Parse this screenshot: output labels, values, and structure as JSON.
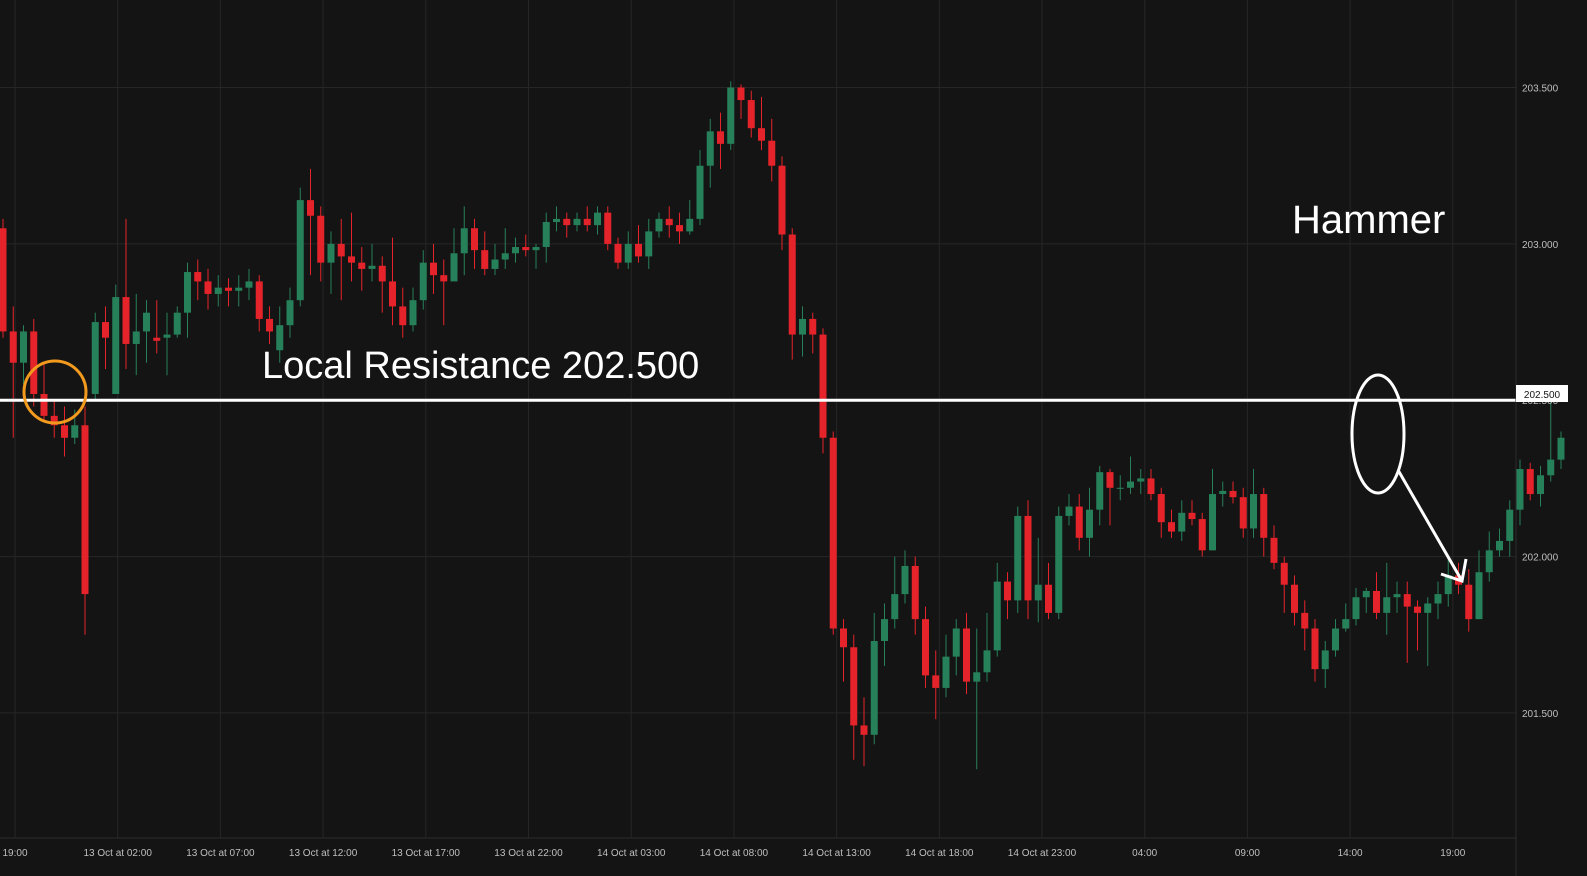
{
  "chart_data": {
    "type": "candlestick",
    "title": "",
    "xlabel": "",
    "ylabel": "",
    "ylim": [
      201.1,
      203.78
    ],
    "grid": true,
    "y_ticks": [
      "201.500",
      "202.000",
      "202.500",
      "203.000",
      "203.500"
    ],
    "x_ticks": [
      "19:00",
      "13 Oct at 02:00",
      "13 Oct at 07:00",
      "13 Oct at 12:00",
      "13 Oct at 17:00",
      "13 Oct at 22:00",
      "14 Oct at 03:00",
      "14 Oct at 08:00",
      "14 Oct at 13:00",
      "14 Oct at 18:00",
      "14 Oct at 23:00",
      "04:00",
      "09:00",
      "14:00",
      "19:00"
    ],
    "resistance": {
      "level": 202.5,
      "label": "202.500",
      "annotation": "Local Resistance 202.500"
    },
    "pattern_label": "Hammer",
    "colors": {
      "up": "#26805a",
      "down": "#e5232a",
      "background": "#141414",
      "grid": "#262626",
      "line": "#ffffff",
      "circle_left": "#f29a1e",
      "circle_right": "#ffffff"
    },
    "candles": [
      [
        203.05,
        202.72,
        203.08,
        202.7
      ],
      [
        202.72,
        202.62,
        202.8,
        202.38
      ],
      [
        202.62,
        202.72,
        202.74,
        202.55
      ],
      [
        202.72,
        202.52,
        202.76,
        202.48
      ],
      [
        202.52,
        202.45,
        202.62,
        202.43
      ],
      [
        202.45,
        202.42,
        202.5,
        202.38
      ],
      [
        202.42,
        202.38,
        202.48,
        202.32
      ],
      [
        202.38,
        202.42,
        202.47,
        202.36
      ],
      [
        202.42,
        201.88,
        202.48,
        201.75
      ],
      [
        202.52,
        202.75,
        202.78,
        202.5
      ],
      [
        202.75,
        202.7,
        202.8,
        202.6
      ],
      [
        202.52,
        202.83,
        202.87,
        202.52
      ],
      [
        202.83,
        202.68,
        203.08,
        202.6
      ],
      [
        202.68,
        202.72,
        202.84,
        202.58
      ],
      [
        202.72,
        202.78,
        202.82,
        202.62
      ],
      [
        202.7,
        202.69,
        202.82,
        202.65
      ],
      [
        202.7,
        202.71,
        202.78,
        202.58
      ],
      [
        202.71,
        202.78,
        202.8,
        202.7
      ],
      [
        202.78,
        202.91,
        202.94,
        202.7
      ],
      [
        202.91,
        202.88,
        202.95,
        202.82
      ],
      [
        202.88,
        202.84,
        202.92,
        202.79
      ],
      [
        202.84,
        202.86,
        202.9,
        202.8
      ],
      [
        202.86,
        202.85,
        202.89,
        202.8
      ],
      [
        202.85,
        202.86,
        202.9,
        202.8
      ],
      [
        202.86,
        202.88,
        202.92,
        202.82
      ],
      [
        202.88,
        202.76,
        202.9,
        202.72
      ],
      [
        202.76,
        202.72,
        202.8,
        202.68
      ],
      [
        202.66,
        202.74,
        202.8,
        202.62
      ],
      [
        202.74,
        202.82,
        202.86,
        202.7
      ],
      [
        202.82,
        203.14,
        203.18,
        202.8
      ],
      [
        203.14,
        203.09,
        203.24,
        202.9
      ],
      [
        203.09,
        202.94,
        203.12,
        202.88
      ],
      [
        202.94,
        203.0,
        203.04,
        202.84
      ],
      [
        203.0,
        202.96,
        203.08,
        202.82
      ],
      [
        202.96,
        202.94,
        203.1,
        202.88
      ],
      [
        202.94,
        202.92,
        202.99,
        202.85
      ],
      [
        202.92,
        202.93,
        203.0,
        202.88
      ],
      [
        202.93,
        202.88,
        202.96,
        202.78
      ],
      [
        202.88,
        202.8,
        203.02,
        202.74
      ],
      [
        202.8,
        202.74,
        202.86,
        202.7
      ],
      [
        202.74,
        202.82,
        202.86,
        202.72
      ],
      [
        202.82,
        202.94,
        202.98,
        202.79
      ],
      [
        202.94,
        202.9,
        203.0,
        202.84
      ],
      [
        202.9,
        202.88,
        202.95,
        202.74
      ],
      [
        202.88,
        202.97,
        203.05,
        202.9
      ],
      [
        202.97,
        203.05,
        203.12,
        202.9
      ],
      [
        203.05,
        202.98,
        203.08,
        202.92
      ],
      [
        202.98,
        202.92,
        203.04,
        202.9
      ],
      [
        202.92,
        202.95,
        203.0,
        202.9
      ],
      [
        202.95,
        202.97,
        203.05,
        202.92
      ],
      [
        202.97,
        202.99,
        203.02,
        202.94
      ],
      [
        202.99,
        202.98,
        203.03,
        202.96
      ],
      [
        202.98,
        202.99,
        203.0,
        202.92
      ],
      [
        202.99,
        203.07,
        203.1,
        202.94
      ],
      [
        203.07,
        203.08,
        203.12,
        203.04
      ],
      [
        203.08,
        203.06,
        203.1,
        203.02
      ],
      [
        203.06,
        203.08,
        203.1,
        203.04
      ],
      [
        203.08,
        203.06,
        203.12,
        203.04
      ],
      [
        203.06,
        203.1,
        203.12,
        203.03
      ],
      [
        203.1,
        203.0,
        203.12,
        202.98
      ],
      [
        203.0,
        202.94,
        203.02,
        202.92
      ],
      [
        202.94,
        203.0,
        203.04,
        202.92
      ],
      [
        203.0,
        202.96,
        203.06,
        202.94
      ],
      [
        202.96,
        203.04,
        203.08,
        202.92
      ],
      [
        203.04,
        203.08,
        203.1,
        203.02
      ],
      [
        203.08,
        203.06,
        203.12,
        203.02
      ],
      [
        203.06,
        203.04,
        203.1,
        203.0
      ],
      [
        203.04,
        203.08,
        203.14,
        203.03
      ],
      [
        203.08,
        203.25,
        203.3,
        203.06
      ],
      [
        203.25,
        203.36,
        203.4,
        203.18
      ],
      [
        203.36,
        203.32,
        203.42,
        203.24
      ],
      [
        203.32,
        203.5,
        203.52,
        203.3
      ],
      [
        203.5,
        203.46,
        203.51,
        203.4
      ],
      [
        203.46,
        203.37,
        203.49,
        203.34
      ],
      [
        203.37,
        203.33,
        203.47,
        203.3
      ],
      [
        203.33,
        203.25,
        203.4,
        203.2
      ],
      [
        203.25,
        203.03,
        203.28,
        202.98
      ],
      [
        203.03,
        202.71,
        203.05,
        202.63
      ],
      [
        202.71,
        202.76,
        202.8,
        202.64
      ],
      [
        202.76,
        202.71,
        202.78,
        202.65
      ],
      [
        202.71,
        202.38,
        202.73,
        202.33
      ],
      [
        202.38,
        201.77,
        202.4,
        201.75
      ],
      [
        201.77,
        201.71,
        201.8,
        201.6
      ],
      [
        201.71,
        201.46,
        201.75,
        201.35
      ],
      [
        201.46,
        201.43,
        201.55,
        201.33
      ],
      [
        201.43,
        201.73,
        201.82,
        201.4
      ],
      [
        201.73,
        201.8,
        201.85,
        201.65
      ],
      [
        201.8,
        201.88,
        202.0,
        201.77
      ],
      [
        201.88,
        201.97,
        202.02,
        201.85
      ],
      [
        201.97,
        201.8,
        202.0,
        201.75
      ],
      [
        201.8,
        201.62,
        201.84,
        201.58
      ],
      [
        201.62,
        201.58,
        201.7,
        201.48
      ],
      [
        201.58,
        201.68,
        201.75,
        201.55
      ],
      [
        201.68,
        201.77,
        201.8,
        201.62
      ],
      [
        201.77,
        201.6,
        201.82,
        201.56
      ],
      [
        201.6,
        201.63,
        201.77,
        201.32
      ],
      [
        201.63,
        201.7,
        201.82,
        201.6
      ],
      [
        201.7,
        201.92,
        201.98,
        201.68
      ],
      [
        201.92,
        201.86,
        201.95,
        201.8
      ],
      [
        201.86,
        202.13,
        202.16,
        201.82
      ],
      [
        202.13,
        201.86,
        202.18,
        201.8
      ],
      [
        201.86,
        201.91,
        202.06,
        201.79
      ],
      [
        201.91,
        201.82,
        201.98,
        201.8
      ],
      [
        201.82,
        202.13,
        202.16,
        201.8
      ],
      [
        202.13,
        202.16,
        202.2,
        202.1
      ],
      [
        202.16,
        202.06,
        202.2,
        202.02
      ],
      [
        202.06,
        202.15,
        202.22,
        202.0
      ],
      [
        202.15,
        202.27,
        202.29,
        202.1
      ],
      [
        202.27,
        202.22,
        202.28,
        202.1
      ],
      [
        202.22,
        202.22,
        202.26,
        202.18
      ],
      [
        202.22,
        202.24,
        202.32,
        202.2
      ],
      [
        202.24,
        202.25,
        202.28,
        202.2
      ],
      [
        202.25,
        202.2,
        202.28,
        202.18
      ],
      [
        202.2,
        202.11,
        202.22,
        202.06
      ],
      [
        202.11,
        202.08,
        202.15,
        202.06
      ],
      [
        202.08,
        202.14,
        202.18,
        202.05
      ],
      [
        202.14,
        202.12,
        202.18,
        202.1
      ],
      [
        202.12,
        202.02,
        202.14,
        202.0
      ],
      [
        202.02,
        202.2,
        202.28,
        202.02
      ],
      [
        202.2,
        202.21,
        202.24,
        202.16
      ],
      [
        202.21,
        202.19,
        202.24,
        202.17
      ],
      [
        202.19,
        202.09,
        202.22,
        202.06
      ],
      [
        202.09,
        202.2,
        202.28,
        202.06
      ],
      [
        202.2,
        202.06,
        202.22,
        202.0
      ],
      [
        202.06,
        201.98,
        202.1,
        201.96
      ],
      [
        201.98,
        201.91,
        202.0,
        201.82
      ],
      [
        201.91,
        201.82,
        201.94,
        201.78
      ],
      [
        201.82,
        201.77,
        201.86,
        201.7
      ],
      [
        201.77,
        201.64,
        201.8,
        201.6
      ],
      [
        201.64,
        201.7,
        201.73,
        201.58
      ],
      [
        201.7,
        201.77,
        201.8,
        201.68
      ],
      [
        201.77,
        201.8,
        201.85,
        201.76
      ],
      [
        201.8,
        201.87,
        201.9,
        201.78
      ],
      [
        201.87,
        201.89,
        201.9,
        201.82
      ],
      [
        201.89,
        201.82,
        201.95,
        201.8
      ],
      [
        201.82,
        201.87,
        201.98,
        201.75
      ],
      [
        201.87,
        201.88,
        201.92,
        201.82
      ],
      [
        201.88,
        201.84,
        201.92,
        201.66
      ],
      [
        201.84,
        201.82,
        201.86,
        201.7
      ],
      [
        201.82,
        201.85,
        201.87,
        201.65
      ],
      [
        201.85,
        201.88,
        201.92,
        201.8
      ],
      [
        201.88,
        201.94,
        202.0,
        201.84
      ],
      [
        201.94,
        201.91,
        201.98,
        201.88
      ],
      [
        201.91,
        201.8,
        201.96,
        201.76
      ],
      [
        201.8,
        201.95,
        202.02,
        201.8
      ],
      [
        201.95,
        202.02,
        202.08,
        201.92
      ],
      [
        202.02,
        202.05,
        202.09,
        202.0
      ],
      [
        202.05,
        202.15,
        202.18,
        202.0
      ],
      [
        202.15,
        202.28,
        202.31,
        202.1
      ],
      [
        202.28,
        202.2,
        202.3,
        202.18
      ],
      [
        202.2,
        202.26,
        202.29,
        202.16
      ],
      [
        202.26,
        202.31,
        202.5,
        202.24
      ],
      [
        202.31,
        202.38,
        202.4,
        202.28
      ]
    ]
  }
}
